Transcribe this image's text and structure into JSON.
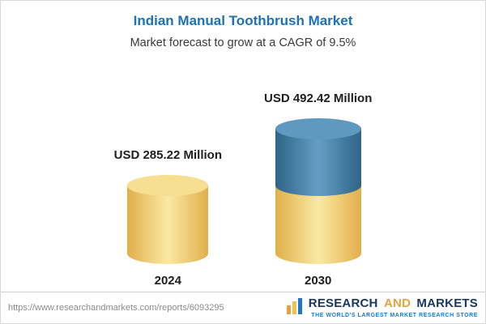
{
  "header": {
    "title": "Indian Manual Toothbrush Market",
    "subtitle": "Market forecast to grow at a CAGR of 9.5%"
  },
  "chart_data": {
    "type": "bar",
    "title": "Indian Manual Toothbrush Market",
    "subtitle": "Market forecast to grow at a CAGR of 9.5%",
    "unit": "USD Million",
    "cagr_percent": 9.5,
    "categories": [
      "2024",
      "2030"
    ],
    "values": [
      285.22,
      492.42
    ],
    "value_labels": [
      "USD 285.22 Million",
      "USD 492.42 Million"
    ],
    "segments_2030": {
      "gold": 285.22,
      "blue": 207.2
    },
    "bar_colors": {
      "gold": "#F0CB63",
      "blue": "#3A76A3"
    },
    "ylim": [
      0,
      520
    ],
    "grid": false,
    "legend": false
  },
  "footer": {
    "url": "https://www.researchandmarkets.com/reports/6093295",
    "logo": {
      "part1": "RESEARCH",
      "part2": "AND",
      "part3": "MARKETS",
      "tagline": "THE WORLD'S LARGEST MARKET RESEARCH STORE"
    }
  },
  "colors": {
    "title_blue": "#1B72B8",
    "text_dark": "#1F1F1F",
    "url_gray": "#8C8C8C",
    "logo_navy": "#1B3764",
    "logo_gold": "#E8A33D",
    "tagline_blue": "#1E78C8"
  }
}
